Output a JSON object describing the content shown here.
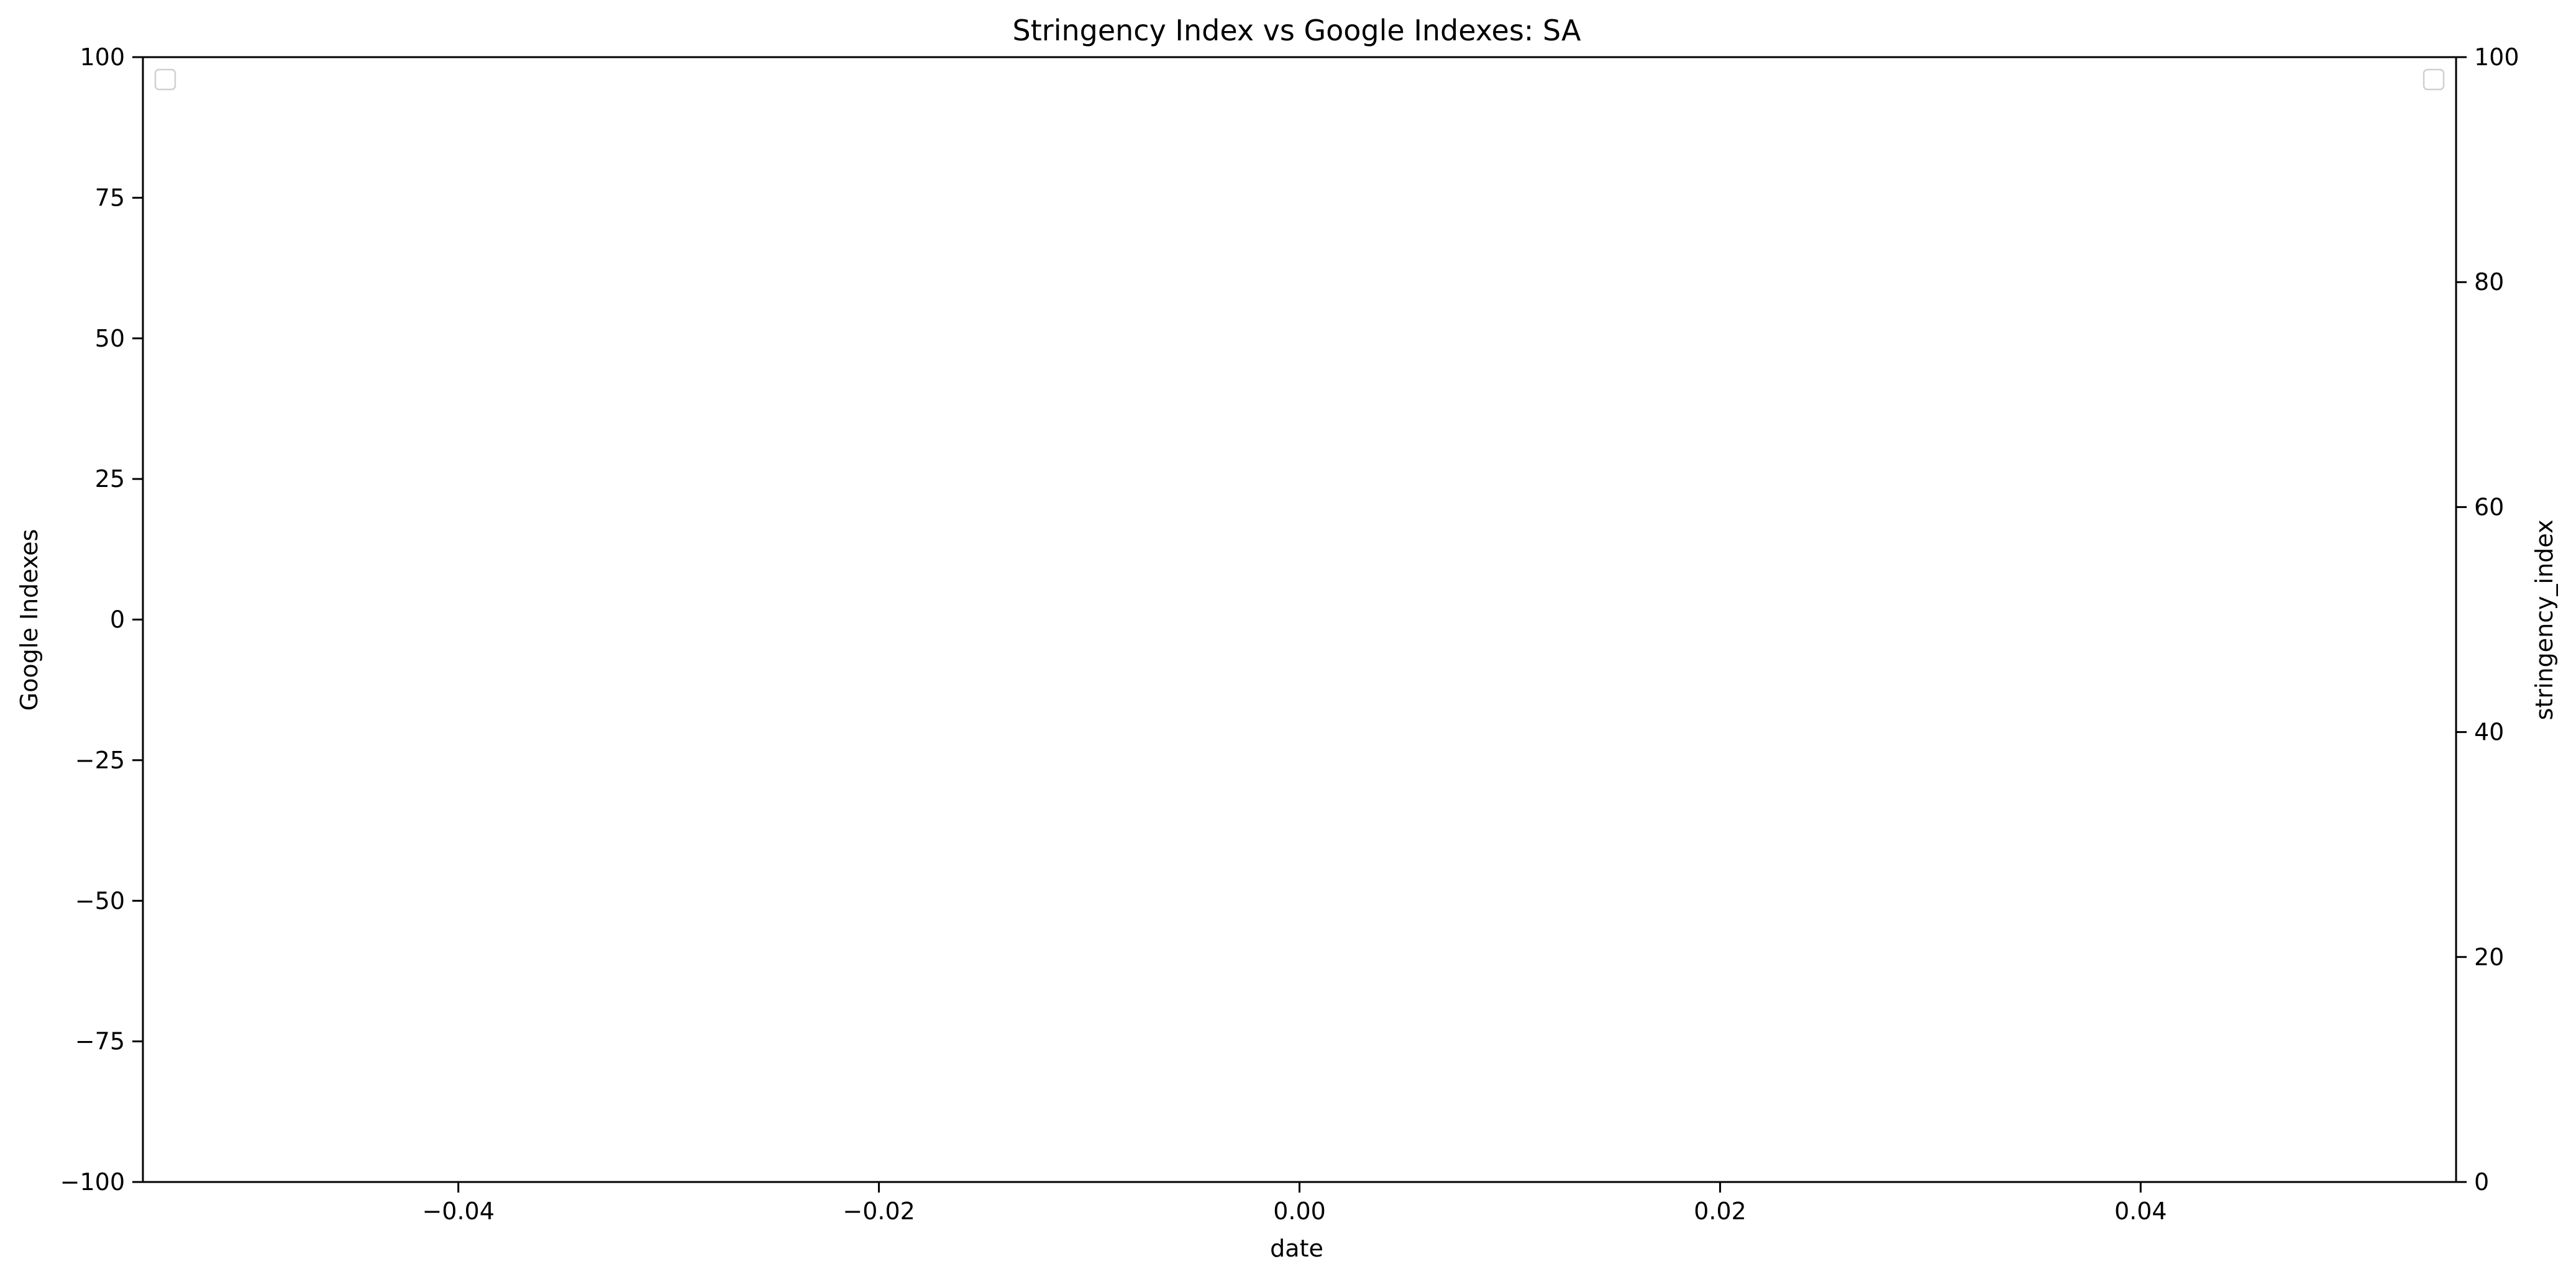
{
  "chart_data": {
    "type": "line",
    "title": "Stringency Index vs Google Indexes:  SA",
    "xlabel": "date",
    "ylabel": "Google Indexes",
    "y2label": "stringency_index",
    "xlim": [
      -0.055,
      0.055
    ],
    "ylim": [
      -100,
      100
    ],
    "y2lim": [
      0,
      100
    ],
    "x_ticks": [
      -0.04,
      -0.02,
      0.0,
      0.02,
      0.04
    ],
    "x_tick_labels": [
      "−0.04",
      "−0.02",
      "0.00",
      "0.02",
      "0.04"
    ],
    "y_ticks": [
      100,
      75,
      50,
      25,
      0,
      -25,
      -50,
      -75,
      -100
    ],
    "y_tick_labels": [
      "100",
      "75",
      "50",
      "25",
      "0",
      "−25",
      "−50",
      "−75",
      "−100"
    ],
    "y2_ticks": [
      100,
      80,
      60,
      40,
      20,
      0
    ],
    "y2_tick_labels": [
      "100",
      "80",
      "60",
      "40",
      "20",
      "0"
    ],
    "grid": false,
    "legends": [
      "top-left",
      "top-right"
    ],
    "series": []
  }
}
